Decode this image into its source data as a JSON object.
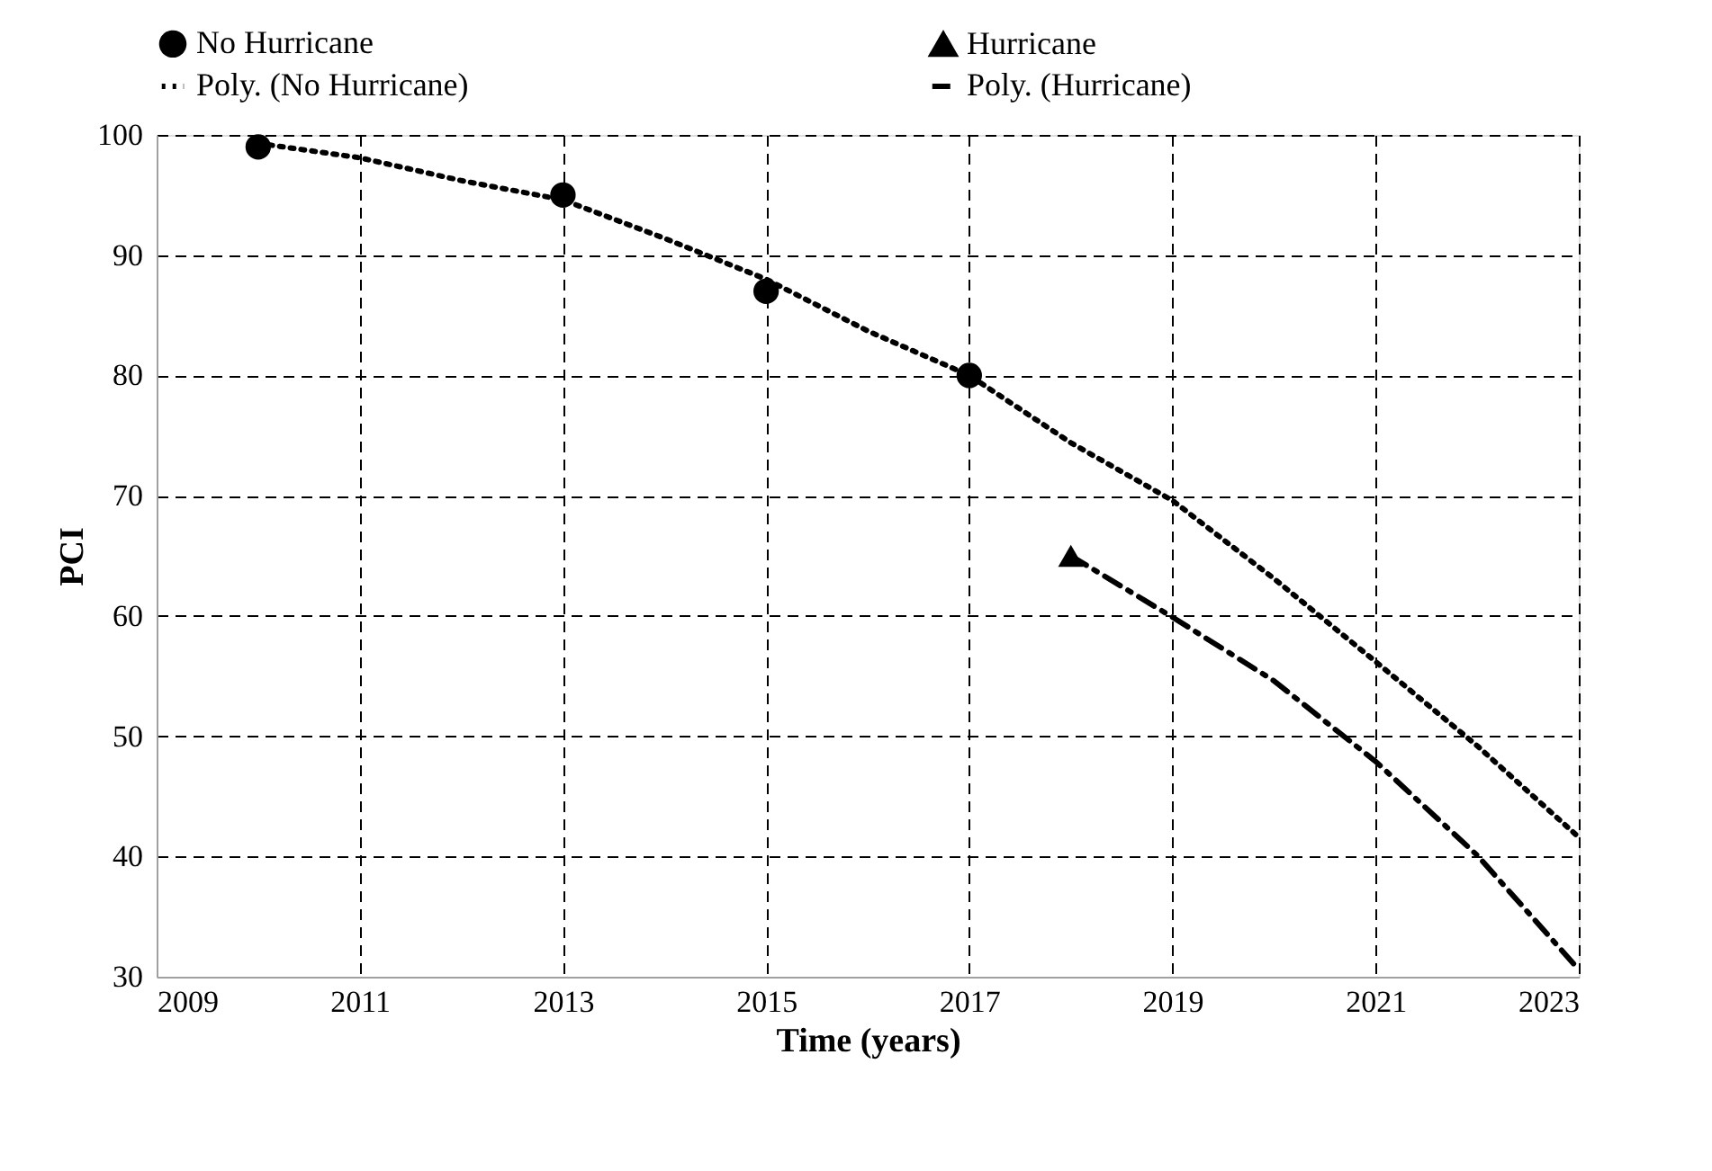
{
  "chart_data": {
    "type": "scatter",
    "xlabel": "Time (years)",
    "ylabel": "PCI",
    "xlim": [
      2009,
      2023
    ],
    "xticks": [
      2009,
      2011,
      2013,
      2015,
      2017,
      2019,
      2021,
      2023
    ],
    "ylim": [
      30,
      100
    ],
    "yticks": [
      30,
      40,
      50,
      60,
      70,
      80,
      90,
      100
    ],
    "grid": true,
    "legend": "top",
    "series": [
      {
        "name": "No Hurricane",
        "marker": "circle",
        "color": "#000000",
        "x": [
          2010,
          2013,
          2015,
          2017
        ],
        "values": [
          99,
          95,
          87,
          80
        ]
      },
      {
        "name": "Hurricane",
        "marker": "triangle",
        "color": "#000000",
        "x": [
          2018
        ],
        "values": [
          65
        ]
      },
      {
        "name": "Poly. (No Hurricane)",
        "type": "line",
        "marker": "none",
        "line_style": "dotted",
        "color": "#000000",
        "x": [
          2010,
          2011,
          2012,
          2013,
          2014,
          2015,
          2016,
          2017,
          2018,
          2019,
          2020,
          2021,
          2022,
          2023
        ],
        "values": [
          99.3,
          98.1,
          96.2,
          94.6,
          91.4,
          88,
          83.7,
          80,
          74.4,
          69.6,
          63.1,
          56.2,
          49.2,
          41.6
        ]
      },
      {
        "name": "Poly. (Hurricane)",
        "type": "line",
        "marker": "none",
        "line_style": "dashdot",
        "color": "#000000",
        "x": [
          2018,
          2019,
          2020,
          2021,
          2022,
          2023
        ],
        "values": [
          65,
          59.9,
          54.6,
          47.9,
          40.1,
          30.6
        ]
      }
    ]
  }
}
